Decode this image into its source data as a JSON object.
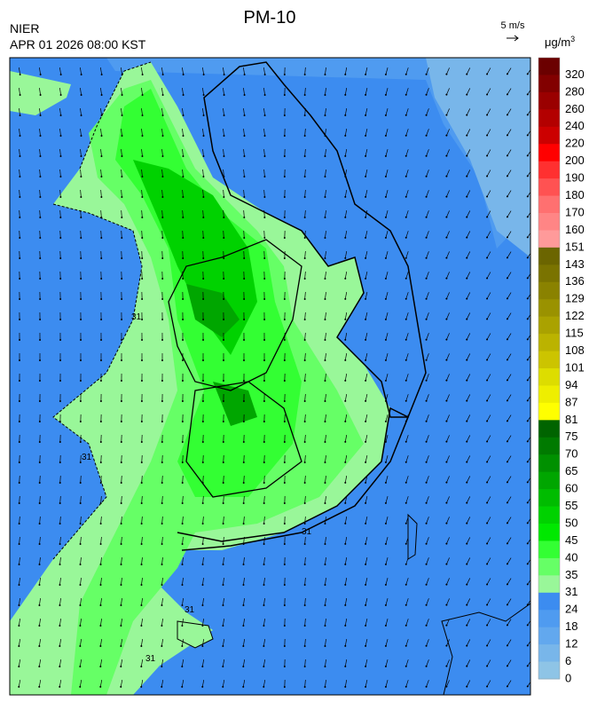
{
  "header": {
    "title": "PM-10",
    "agency": "NIER",
    "timestamp": "APR 01 2026 08:00 KST",
    "wind_scale": "5 m/s"
  },
  "legend": {
    "unit": "μg/m",
    "unit_exp": "3",
    "levels": [
      {
        "label": "320",
        "color": "#6b0000"
      },
      {
        "label": "280",
        "color": "#820000"
      },
      {
        "label": "260",
        "color": "#9a0000"
      },
      {
        "label": "240",
        "color": "#b30000"
      },
      {
        "label": "220",
        "color": "#cc0000"
      },
      {
        "label": "200",
        "color": "#ff0000"
      },
      {
        "label": "190",
        "color": "#ff3030"
      },
      {
        "label": "180",
        "color": "#ff5252"
      },
      {
        "label": "170",
        "color": "#ff7070"
      },
      {
        "label": "160",
        "color": "#ff8585"
      },
      {
        "label": "151",
        "color": "#ff9a9a"
      },
      {
        "label": "143",
        "color": "#6b6500"
      },
      {
        "label": "136",
        "color": "#7a7300"
      },
      {
        "label": "129",
        "color": "#8a8200"
      },
      {
        "label": "122",
        "color": "#9a9200"
      },
      {
        "label": "115",
        "color": "#aaa200"
      },
      {
        "label": "108",
        "color": "#bbb300"
      },
      {
        "label": "101",
        "color": "#ccc400"
      },
      {
        "label": "94",
        "color": "#dddd00"
      },
      {
        "label": "87",
        "color": "#eeee00"
      },
      {
        "label": "81",
        "color": "#ffff00"
      },
      {
        "label": "75",
        "color": "#006400"
      },
      {
        "label": "70",
        "color": "#007a00"
      },
      {
        "label": "65",
        "color": "#009000"
      },
      {
        "label": "60",
        "color": "#00a600"
      },
      {
        "label": "55",
        "color": "#00bc00"
      },
      {
        "label": "50",
        "color": "#00d200"
      },
      {
        "label": "45",
        "color": "#00e800"
      },
      {
        "label": "40",
        "color": "#33ff33"
      },
      {
        "label": "35",
        "color": "#66ff66"
      },
      {
        "label": "31",
        "color": "#99f799"
      },
      {
        "label": "24",
        "color": "#3c8cf0"
      },
      {
        "label": "18",
        "color": "#4f9bf0"
      },
      {
        "label": "12",
        "color": "#62a8ee"
      },
      {
        "label": "6",
        "color": "#78b6ea"
      },
      {
        "label": "0",
        "color": "#8ec4e6"
      }
    ]
  },
  "map": {
    "contour_labels": [
      "31",
      "31",
      "31",
      "31",
      "31"
    ]
  }
}
